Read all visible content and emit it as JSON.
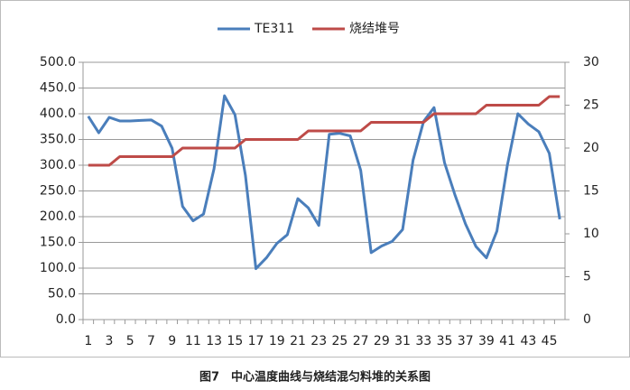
{
  "chart_data": {
    "type": "line",
    "caption": "图7　中心温度曲线与烧结混匀料堆的关系图",
    "categories": [
      1,
      null,
      3,
      null,
      5,
      null,
      7,
      null,
      9,
      null,
      11,
      null,
      13,
      null,
      15,
      null,
      17,
      null,
      19,
      null,
      21,
      null,
      23,
      null,
      25,
      null,
      27,
      null,
      29,
      null,
      31,
      null,
      33,
      null,
      35,
      null,
      37,
      null,
      39,
      null,
      41,
      null,
      43,
      null,
      45,
      null
    ],
    "series": [
      {
        "name": "TE311",
        "color": "#4a7ebb",
        "axis": "y",
        "values": [
          395,
          363,
          393,
          386,
          386,
          387,
          388,
          376,
          333,
          220,
          192,
          205,
          293,
          435,
          398,
          280,
          99,
          120,
          148,
          165,
          235,
          217,
          183,
          360,
          362,
          357,
          290,
          130,
          143,
          152,
          175,
          310,
          385,
          412,
          305,
          242,
          186,
          142,
          120,
          172,
          300,
          400,
          380,
          365,
          323,
          195
        ]
      },
      {
        "name": "烧结堆号",
        "color": "#be4b48",
        "axis": "y2",
        "values": [
          18,
          18,
          18,
          19,
          19,
          19,
          19,
          19,
          19,
          20,
          20,
          20,
          20,
          20,
          20,
          21,
          21,
          21,
          21,
          21,
          21,
          22,
          22,
          22,
          22,
          22,
          22,
          23,
          23,
          23,
          23,
          23,
          23,
          24,
          24,
          24,
          24,
          24,
          25,
          25,
          25,
          25,
          25,
          25,
          26,
          26
        ]
      }
    ],
    "ylim": [
      0,
      500
    ],
    "yticks": [
      {
        "value": 0,
        "label": "0.0"
      },
      {
        "value": 50,
        "label": "50.0"
      },
      {
        "value": 100,
        "label": "100.0"
      },
      {
        "value": 150,
        "label": "150.0"
      },
      {
        "value": 200,
        "label": "200.0"
      },
      {
        "value": 250,
        "label": "250.0"
      },
      {
        "value": 300,
        "label": "300.0"
      },
      {
        "value": 350,
        "label": "350.0"
      },
      {
        "value": 400,
        "label": "400.0"
      },
      {
        "value": 450,
        "label": "450.0"
      },
      {
        "value": 500,
        "label": "500.0"
      }
    ],
    "y2lim": [
      0,
      30
    ],
    "y2ticks": [
      0,
      5,
      10,
      15,
      20,
      25,
      30
    ],
    "grid": true,
    "legend": "top"
  }
}
